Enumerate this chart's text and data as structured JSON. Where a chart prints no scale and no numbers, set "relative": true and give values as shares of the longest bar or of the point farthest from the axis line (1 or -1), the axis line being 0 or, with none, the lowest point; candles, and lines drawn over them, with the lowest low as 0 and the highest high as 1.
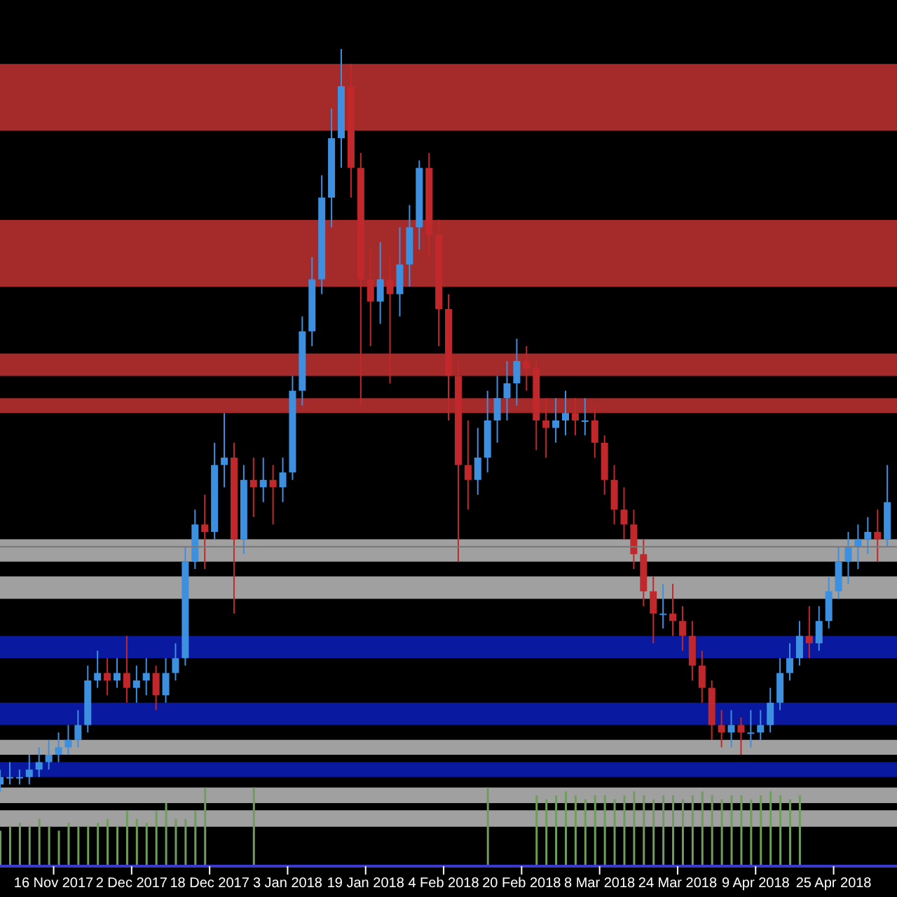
{
  "chart_data": [
    {
      "type": "candlestick",
      "relative": true,
      "x": [
        "2017-11-05",
        "2017-11-07",
        "2017-11-09",
        "2017-11-11",
        "2017-11-13",
        "2017-11-15",
        "2017-11-17",
        "2017-11-19",
        "2017-11-21",
        "2017-11-23",
        "2017-11-25",
        "2017-11-27",
        "2017-11-29",
        "2017-12-01",
        "2017-12-03",
        "2017-12-05",
        "2017-12-07",
        "2017-12-09",
        "2017-12-11",
        "2017-12-13",
        "2017-12-15",
        "2017-12-17",
        "2017-12-19",
        "2017-12-21",
        "2017-12-23",
        "2017-12-25",
        "2017-12-27",
        "2017-12-29",
        "2017-12-31",
        "2018-01-02",
        "2018-01-04",
        "2018-01-06",
        "2018-01-08",
        "2018-01-10",
        "2018-01-12",
        "2018-01-14",
        "2018-01-16",
        "2018-01-18",
        "2018-01-20",
        "2018-01-22",
        "2018-01-24",
        "2018-01-26",
        "2018-01-28",
        "2018-01-30",
        "2018-02-01",
        "2018-02-03",
        "2018-02-05",
        "2018-02-07",
        "2018-02-09",
        "2018-02-11",
        "2018-02-13",
        "2018-02-15",
        "2018-02-17",
        "2018-02-19",
        "2018-02-21",
        "2018-02-23",
        "2018-02-25",
        "2018-02-27",
        "2018-03-01",
        "2018-03-03",
        "2018-03-05",
        "2018-03-07",
        "2018-03-09",
        "2018-03-11",
        "2018-03-13",
        "2018-03-15",
        "2018-03-17",
        "2018-03-19",
        "2018-03-21",
        "2018-03-23",
        "2018-03-25",
        "2018-03-27",
        "2018-03-29",
        "2018-03-31",
        "2018-04-02",
        "2018-04-04",
        "2018-04-06",
        "2018-04-08",
        "2018-04-10",
        "2018-04-12",
        "2018-04-14",
        "2018-04-16",
        "2018-04-18",
        "2018-04-20",
        "2018-04-22",
        "2018-04-24",
        "2018-04-26",
        "2018-04-28",
        "2018-04-30",
        "2018-05-02",
        "2018-05-04",
        "2018-05-06"
      ],
      "ohlc": [
        [
          0.01,
          0.03,
          0.0,
          0.02
        ],
        [
          0.02,
          0.04,
          0.01,
          0.02
        ],
        [
          0.02,
          0.03,
          0.01,
          0.02
        ],
        [
          0.02,
          0.05,
          0.01,
          0.03
        ],
        [
          0.03,
          0.06,
          0.02,
          0.04
        ],
        [
          0.04,
          0.07,
          0.03,
          0.05
        ],
        [
          0.05,
          0.08,
          0.04,
          0.06
        ],
        [
          0.06,
          0.09,
          0.05,
          0.07
        ],
        [
          0.07,
          0.11,
          0.06,
          0.09
        ],
        [
          0.09,
          0.17,
          0.08,
          0.15
        ],
        [
          0.15,
          0.19,
          0.14,
          0.16
        ],
        [
          0.16,
          0.18,
          0.13,
          0.15
        ],
        [
          0.15,
          0.18,
          0.14,
          0.16
        ],
        [
          0.16,
          0.21,
          0.12,
          0.14
        ],
        [
          0.14,
          0.17,
          0.12,
          0.15
        ],
        [
          0.15,
          0.18,
          0.13,
          0.16
        ],
        [
          0.16,
          0.17,
          0.11,
          0.13
        ],
        [
          0.13,
          0.18,
          0.12,
          0.16
        ],
        [
          0.16,
          0.2,
          0.15,
          0.18
        ],
        [
          0.18,
          0.33,
          0.17,
          0.31
        ],
        [
          0.31,
          0.38,
          0.3,
          0.36
        ],
        [
          0.36,
          0.4,
          0.3,
          0.35
        ],
        [
          0.35,
          0.47,
          0.34,
          0.44
        ],
        [
          0.44,
          0.51,
          0.41,
          0.45
        ],
        [
          0.45,
          0.47,
          0.24,
          0.34
        ],
        [
          0.34,
          0.44,
          0.32,
          0.42
        ],
        [
          0.42,
          0.45,
          0.37,
          0.41
        ],
        [
          0.41,
          0.45,
          0.39,
          0.42
        ],
        [
          0.42,
          0.44,
          0.36,
          0.41
        ],
        [
          0.41,
          0.45,
          0.39,
          0.43
        ],
        [
          0.43,
          0.56,
          0.42,
          0.54
        ],
        [
          0.54,
          0.64,
          0.52,
          0.62
        ],
        [
          0.62,
          0.72,
          0.6,
          0.69
        ],
        [
          0.69,
          0.83,
          0.67,
          0.8
        ],
        [
          0.8,
          0.92,
          0.76,
          0.88
        ],
        [
          0.88,
          1.0,
          0.84,
          0.95
        ],
        [
          0.95,
          0.98,
          0.8,
          0.84
        ],
        [
          0.84,
          0.86,
          0.52,
          0.69
        ],
        [
          0.69,
          0.73,
          0.6,
          0.66
        ],
        [
          0.66,
          0.74,
          0.63,
          0.69
        ],
        [
          0.69,
          0.72,
          0.55,
          0.67
        ],
        [
          0.67,
          0.76,
          0.64,
          0.71
        ],
        [
          0.71,
          0.79,
          0.68,
          0.76
        ],
        [
          0.76,
          0.85,
          0.73,
          0.84
        ],
        [
          0.84,
          0.86,
          0.72,
          0.75
        ],
        [
          0.75,
          0.77,
          0.6,
          0.65
        ],
        [
          0.65,
          0.67,
          0.5,
          0.56
        ],
        [
          0.56,
          0.58,
          0.31,
          0.44
        ],
        [
          0.44,
          0.5,
          0.38,
          0.42
        ],
        [
          0.42,
          0.49,
          0.4,
          0.45
        ],
        [
          0.45,
          0.54,
          0.43,
          0.5
        ],
        [
          0.5,
          0.56,
          0.47,
          0.53
        ],
        [
          0.53,
          0.58,
          0.5,
          0.55
        ],
        [
          0.55,
          0.61,
          0.52,
          0.58
        ],
        [
          0.58,
          0.6,
          0.54,
          0.57
        ],
        [
          0.57,
          0.58,
          0.46,
          0.5
        ],
        [
          0.5,
          0.53,
          0.45,
          0.49
        ],
        [
          0.49,
          0.53,
          0.47,
          0.5
        ],
        [
          0.5,
          0.54,
          0.48,
          0.51
        ],
        [
          0.51,
          0.53,
          0.48,
          0.5
        ],
        [
          0.5,
          0.53,
          0.48,
          0.5
        ],
        [
          0.5,
          0.52,
          0.45,
          0.47
        ],
        [
          0.47,
          0.48,
          0.4,
          0.42
        ],
        [
          0.42,
          0.44,
          0.36,
          0.38
        ],
        [
          0.38,
          0.41,
          0.34,
          0.36
        ],
        [
          0.36,
          0.38,
          0.3,
          0.32
        ],
        [
          0.32,
          0.34,
          0.25,
          0.27
        ],
        [
          0.27,
          0.29,
          0.2,
          0.24
        ],
        [
          0.24,
          0.28,
          0.22,
          0.24
        ],
        [
          0.24,
          0.28,
          0.21,
          0.23
        ],
        [
          0.23,
          0.25,
          0.19,
          0.21
        ],
        [
          0.21,
          0.23,
          0.15,
          0.17
        ],
        [
          0.17,
          0.19,
          0.12,
          0.14
        ],
        [
          0.14,
          0.15,
          0.07,
          0.09
        ],
        [
          0.09,
          0.11,
          0.06,
          0.08
        ],
        [
          0.08,
          0.11,
          0.06,
          0.09
        ],
        [
          0.09,
          0.1,
          0.05,
          0.08
        ],
        [
          0.08,
          0.11,
          0.06,
          0.08
        ],
        [
          0.08,
          0.11,
          0.07,
          0.09
        ],
        [
          0.09,
          0.14,
          0.08,
          0.12
        ],
        [
          0.12,
          0.18,
          0.11,
          0.16
        ],
        [
          0.16,
          0.2,
          0.15,
          0.18
        ],
        [
          0.18,
          0.23,
          0.17,
          0.21
        ],
        [
          0.21,
          0.25,
          0.18,
          0.2
        ],
        [
          0.2,
          0.25,
          0.19,
          0.23
        ],
        [
          0.23,
          0.29,
          0.22,
          0.27
        ],
        [
          0.27,
          0.33,
          0.26,
          0.31
        ],
        [
          0.31,
          0.35,
          0.28,
          0.33
        ],
        [
          0.33,
          0.36,
          0.3,
          0.34
        ],
        [
          0.34,
          0.37,
          0.32,
          0.35
        ],
        [
          0.35,
          0.38,
          0.31,
          0.34
        ],
        [
          0.34,
          0.44,
          0.33,
          0.39
        ]
      ],
      "colors": [
        "#3d8fe0",
        "#3d8fe0",
        "#3d8fe0",
        "#3d8fe0",
        "#3d8fe0",
        "#3d8fe0",
        "#3d8fe0",
        "#3d8fe0",
        "#3d8fe0",
        "#3d8fe0",
        "#3d8fe0",
        "#c0282b",
        "#3d8fe0",
        "#c0282b",
        "#3d8fe0",
        "#3d8fe0",
        "#c0282b",
        "#3d8fe0",
        "#3d8fe0",
        "#3d8fe0",
        "#3d8fe0",
        "#c0282b",
        "#3d8fe0",
        "#3d8fe0",
        "#c0282b",
        "#3d8fe0",
        "#c0282b",
        "#3d8fe0",
        "#c0282b",
        "#3d8fe0",
        "#3d8fe0",
        "#3d8fe0",
        "#3d8fe0",
        "#3d8fe0",
        "#3d8fe0",
        "#3d8fe0",
        "#c0282b",
        "#c0282b",
        "#c0282b",
        "#3d8fe0",
        "#c0282b",
        "#3d8fe0",
        "#3d8fe0",
        "#3d8fe0",
        "#c0282b",
        "#c0282b",
        "#c0282b",
        "#c0282b",
        "#c0282b",
        "#3d8fe0",
        "#3d8fe0",
        "#3d8fe0",
        "#3d8fe0",
        "#3d8fe0",
        "#c0282b",
        "#c0282b",
        "#c0282b",
        "#3d8fe0",
        "#3d8fe0",
        "#c0282b",
        "#3d8fe0",
        "#c0282b",
        "#c0282b",
        "#c0282b",
        "#c0282b",
        "#c0282b",
        "#c0282b",
        "#c0282b",
        "#3d8fe0",
        "#c0282b",
        "#c0282b",
        "#c0282b",
        "#c0282b",
        "#c0282b",
        "#c0282b",
        "#3d8fe0",
        "#c0282b",
        "#3d8fe0",
        "#3d8fe0",
        "#3d8fe0",
        "#3d8fe0",
        "#3d8fe0",
        "#3d8fe0",
        "#c0282b",
        "#3d8fe0",
        "#3d8fe0",
        "#3d8fe0",
        "#3d8fe0",
        "#3d8fe0",
        "#3d8fe0",
        "#c0282b",
        "#3d8fe0"
      ],
      "xlim": [
        "2017-11-05",
        "2018-05-08"
      ],
      "bands": [
        {
          "axis": "y",
          "from": 0.89,
          "to": 0.98,
          "color": "#a52a2a"
        },
        {
          "axis": "y",
          "from": 0.68,
          "to": 0.77,
          "color": "#a52a2a"
        },
        {
          "axis": "y",
          "from": 0.56,
          "to": 0.59,
          "color": "#a52a2a"
        },
        {
          "axis": "y",
          "from": 0.51,
          "to": 0.53,
          "color": "#a52a2a"
        },
        {
          "axis": "y",
          "from": 0.31,
          "to": 0.34,
          "color": "#a0a0a0"
        },
        {
          "axis": "y",
          "from": 0.26,
          "to": 0.29,
          "color": "#a0a0a0"
        },
        {
          "axis": "y",
          "from": 0.18,
          "to": 0.21,
          "color": "#0a1aa0"
        },
        {
          "axis": "y",
          "from": 0.09,
          "to": 0.12,
          "color": "#0a1aa0"
        },
        {
          "axis": "y",
          "from": 0.05,
          "to": 0.07,
          "color": "#a0a0a0"
        },
        {
          "axis": "y",
          "from": 0.02,
          "to": 0.04,
          "color": "#0a1aa0"
        }
      ],
      "ref_lines": [
        {
          "axis": "y",
          "value": 0.33,
          "color": "#777777",
          "line_style": "solid"
        }
      ]
    },
    {
      "type": "bar",
      "relative": true,
      "color": "#6f9e5c",
      "x": [
        "2017-11-05",
        "2017-11-07",
        "2017-11-09",
        "2017-11-11",
        "2017-11-13",
        "2017-11-15",
        "2017-11-17",
        "2017-11-19",
        "2017-11-21",
        "2017-11-23",
        "2017-11-25",
        "2017-11-27",
        "2017-11-29",
        "2017-12-01",
        "2017-12-03",
        "2017-12-05",
        "2017-12-07",
        "2017-12-09",
        "2017-12-11",
        "2017-12-13",
        "2017-12-15",
        "2017-12-17",
        "2017-12-19",
        "2017-12-21",
        "2017-12-23",
        "2017-12-25",
        "2017-12-27",
        "2017-12-29",
        "2017-12-31",
        "2018-01-02",
        "2018-01-04",
        "2018-01-06",
        "2018-01-08",
        "2018-01-10",
        "2018-01-12",
        "2018-01-14",
        "2018-01-16",
        "2018-01-18",
        "2018-01-20",
        "2018-01-22",
        "2018-01-24",
        "2018-01-26",
        "2018-01-28",
        "2018-01-30",
        "2018-02-01",
        "2018-02-03",
        "2018-02-05",
        "2018-02-07",
        "2018-02-09",
        "2018-02-11",
        "2018-02-13",
        "2018-02-15",
        "2018-02-17",
        "2018-02-19",
        "2018-02-21",
        "2018-02-23",
        "2018-02-25",
        "2018-02-27",
        "2018-03-01",
        "2018-03-03",
        "2018-03-05",
        "2018-03-07",
        "2018-03-09",
        "2018-03-11",
        "2018-03-13",
        "2018-03-15",
        "2018-03-17",
        "2018-03-19",
        "2018-03-21",
        "2018-03-23",
        "2018-03-25",
        "2018-03-27",
        "2018-03-29",
        "2018-03-31",
        "2018-04-02",
        "2018-04-04",
        "2018-04-06",
        "2018-04-08",
        "2018-04-10",
        "2018-04-12",
        "2018-04-14",
        "2018-04-16",
        "2018-04-18"
      ],
      "values": [
        0.45,
        0.5,
        0.55,
        0.5,
        0.6,
        0.5,
        0.45,
        0.55,
        0.5,
        0.5,
        0.55,
        0.6,
        0.5,
        0.7,
        0.6,
        0.55,
        0.7,
        0.8,
        0.6,
        0.6,
        0.7,
        1.0,
        null,
        null,
        null,
        null,
        1.0,
        null,
        null,
        null,
        null,
        null,
        null,
        null,
        null,
        null,
        null,
        null,
        null,
        null,
        null,
        null,
        null,
        null,
        null,
        null,
        null,
        null,
        null,
        null,
        1.0,
        null,
        null,
        null,
        null,
        0.9,
        0.85,
        0.9,
        0.95,
        0.9,
        0.85,
        0.9,
        0.9,
        0.85,
        0.9,
        0.95,
        0.9,
        0.85,
        0.9,
        0.9,
        0.85,
        0.9,
        0.95,
        0.9,
        0.85,
        0.9,
        0.9,
        0.85,
        0.9,
        0.95,
        0.9,
        0.85,
        0.9
      ],
      "xlim": [
        "2017-11-05",
        "2018-05-08"
      ],
      "xticks": [
        {
          "value": "2017-11-16",
          "label": "16 Nov 2017"
        },
        {
          "value": "2017-12-02",
          "label": "2 Dec 2017"
        },
        {
          "value": "2017-12-18",
          "label": "18 Dec 2017"
        },
        {
          "value": "2018-01-03",
          "label": "3 Jan 2018"
        },
        {
          "value": "2018-01-19",
          "label": "19 Jan 2018"
        },
        {
          "value": "2018-02-04",
          "label": "4 Feb 2018"
        },
        {
          "value": "2018-02-20",
          "label": "20 Feb 2018"
        },
        {
          "value": "2018-03-08",
          "label": "8 Mar 2018"
        },
        {
          "value": "2018-03-24",
          "label": "24 Mar 2018"
        },
        {
          "value": "2018-04-09",
          "label": "9 Apr 2018"
        },
        {
          "value": "2018-04-25",
          "label": "25 Apr 2018"
        }
      ],
      "bands": [
        {
          "axis": "y",
          "from": 0.8,
          "to": 1.0,
          "color": "#a0a0a0"
        },
        {
          "axis": "y",
          "from": 0.5,
          "to": 0.71,
          "color": "#a0a0a0"
        }
      ]
    }
  ]
}
